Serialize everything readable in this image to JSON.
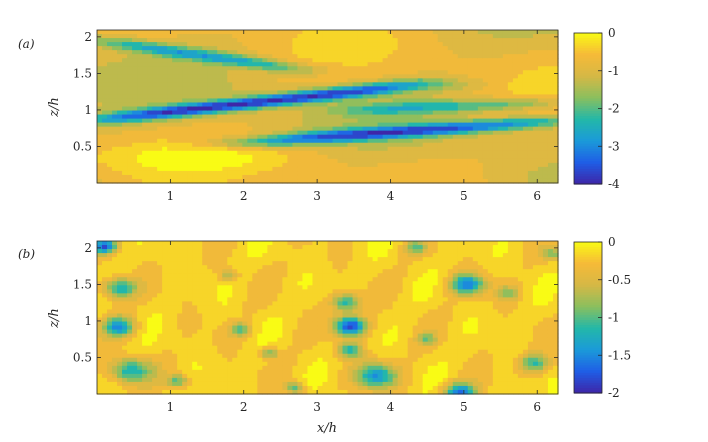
{
  "chart_data": [
    {
      "type": "heatmap",
      "panel_label": "(a)",
      "xlabel": "",
      "ylabel": "z/h",
      "xlim": [
        0,
        6.283
      ],
      "ylim": [
        0,
        2.094
      ],
      "x_ticks": [
        "1",
        "2",
        "3",
        "4",
        "5",
        "6"
      ],
      "y_ticks": [
        "0.5",
        "1",
        "1.5",
        "2"
      ],
      "colorbar": {
        "min": -4,
        "max": 0,
        "ticks": [
          "0",
          "-1",
          "-2",
          "-3",
          "-4"
        ]
      },
      "colormap": [
        "#3e26a8",
        "#1f5ee6",
        "#1b9ad9",
        "#23b8a8",
        "#8bbf5e",
        "#d6b845",
        "#f6ba38",
        "#f9fb15"
      ],
      "features": [
        {
          "kind": "band",
          "z_start": 0.86,
          "z_end": 1.35,
          "x_start": 0,
          "x_end": 4.4,
          "min": -3.8
        },
        {
          "kind": "band",
          "z_start": 0.55,
          "z_end": 0.85,
          "x_start": 2.0,
          "x_end": 6.283,
          "min": -3.4
        },
        {
          "kind": "band",
          "z_start": 1.95,
          "z_end": 1.55,
          "x_start": 0,
          "x_end": 2.8,
          "min": -2.6
        },
        {
          "kind": "band",
          "z_start": 1.0,
          "z_end": 1.1,
          "x_start": 3.5,
          "x_end": 6.283,
          "min": -2.2
        }
      ]
    },
    {
      "type": "heatmap",
      "panel_label": "(b)",
      "xlabel": "x/h",
      "ylabel": "z/h",
      "xlim": [
        0,
        6.283
      ],
      "ylim": [
        0,
        2.094
      ],
      "x_ticks": [
        "1",
        "2",
        "3",
        "4",
        "5",
        "6"
      ],
      "y_ticks": [
        "0.5",
        "1",
        "1.5",
        "2"
      ],
      "colorbar": {
        "min": -2,
        "max": 0,
        "ticks": [
          "0",
          "-0.5",
          "-1",
          "-1.5",
          "-2"
        ]
      },
      "colormap": [
        "#3e26a8",
        "#1f5ee6",
        "#1b9ad9",
        "#23b8a8",
        "#8bbf5e",
        "#d6b845",
        "#f6ba38",
        "#f9fb15"
      ],
      "features": [
        {
          "kind": "spot",
          "x": 3.45,
          "z": 0.93,
          "r": 0.13,
          "min": -1.9
        },
        {
          "kind": "spot",
          "x": 0.3,
          "z": 1.45,
          "r": 0.14,
          "min": -1.3
        },
        {
          "kind": "spot",
          "x": 0.3,
          "z": 0.92,
          "r": 0.13,
          "min": -1.4
        },
        {
          "kind": "spot",
          "x": 0.45,
          "z": 0.32,
          "r": 0.17,
          "min": -1.3
        },
        {
          "kind": "spot",
          "x": 0.1,
          "z": 2.02,
          "r": 0.1,
          "min": -1.6
        },
        {
          "kind": "spot",
          "x": 3.4,
          "z": 1.25,
          "r": 0.12,
          "min": -1.2
        },
        {
          "kind": "spot",
          "x": 3.45,
          "z": 0.6,
          "r": 0.1,
          "min": -1.2
        },
        {
          "kind": "spot",
          "x": 3.8,
          "z": 0.25,
          "r": 0.17,
          "min": -1.4
        },
        {
          "kind": "spot",
          "x": 5.05,
          "z": 1.5,
          "r": 0.14,
          "min": -1.5
        },
        {
          "kind": "spot",
          "x": 4.95,
          "z": 0.02,
          "r": 0.13,
          "min": -1.6
        },
        {
          "kind": "spot",
          "x": 5.95,
          "z": 0.42,
          "r": 0.13,
          "min": -1.1
        },
        {
          "kind": "spot",
          "x": 1.95,
          "z": 0.88,
          "r": 0.09,
          "min": -1.0
        },
        {
          "kind": "spot",
          "x": 2.35,
          "z": 0.56,
          "r": 0.08,
          "min": -0.9
        },
        {
          "kind": "spot",
          "x": 1.1,
          "z": 0.18,
          "r": 0.09,
          "min": -1.0
        },
        {
          "kind": "spot",
          "x": 2.7,
          "z": 0.08,
          "r": 0.08,
          "min": -1.0
        },
        {
          "kind": "spot",
          "x": 4.5,
          "z": 0.75,
          "r": 0.08,
          "min": -0.8
        },
        {
          "kind": "spot",
          "x": 1.8,
          "z": 1.62,
          "r": 0.08,
          "min": -0.8
        },
        {
          "kind": "spot",
          "x": 5.6,
          "z": 1.38,
          "r": 0.09,
          "min": -0.9
        },
        {
          "kind": "spot",
          "x": 4.35,
          "z": 2.0,
          "r": 0.09,
          "min": -0.9
        },
        {
          "kind": "spot",
          "x": 6.2,
          "z": 1.92,
          "r": 0.08,
          "min": -0.9
        }
      ]
    }
  ]
}
